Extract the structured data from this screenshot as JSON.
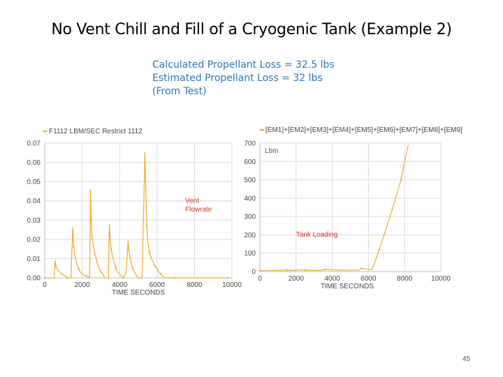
{
  "slide": {
    "title": "No Vent Chill and Fill of a Cryogenic Tank (Example 2)",
    "notes": [
      "Calculated Propellant Loss = 32.5 lbs",
      "Estimated Propellant Loss = 32 lbs",
      "(From Test)"
    ],
    "page_number": "45"
  },
  "chart_data": [
    {
      "type": "line",
      "title": "",
      "xlabel": "TIME  SECONDS",
      "ylabel": "",
      "legend": "top-left",
      "grid": true,
      "xlim": [
        0,
        10000
      ],
      "ylim": [
        0,
        0.07
      ],
      "xticks": [
        "0",
        "2000",
        "4000",
        "6000",
        "8000",
        "10000"
      ],
      "yticks": [
        "0.00",
        "0.01",
        "0.02",
        "0.03",
        "0.04",
        "0.05",
        "0.06",
        "0.07"
      ],
      "series": [
        {
          "name": "F1112 LBM/SEC Restrict 1112",
          "color": "#F0A830",
          "x": [
            0,
            500,
            560,
            600,
            700,
            800,
            900,
            1000,
            1100,
            1200,
            1400,
            1500,
            1550,
            1600,
            1700,
            1800,
            1900,
            2000,
            2200,
            2400,
            2450,
            2480,
            2520,
            2600,
            2700,
            2800,
            2900,
            3000,
            3100,
            3200,
            3400,
            3450,
            3500,
            3550,
            3600,
            3700,
            3800,
            3900,
            4000,
            4200,
            4350,
            4450,
            4500,
            4550,
            4600,
            4700,
            4800,
            4900,
            5000,
            5200,
            5350,
            5450,
            5500,
            5550,
            5600,
            5700,
            5800,
            5900,
            6000,
            6100,
            6200,
            6300,
            6400,
            7000,
            8000,
            9000,
            9800
          ],
          "values": [
            0,
            0,
            0.009,
            0.006,
            0.004,
            0.003,
            0.002,
            0.0015,
            0.001,
            0,
            0,
            0.026,
            0.016,
            0.012,
            0.008,
            0.005,
            0.003,
            0.002,
            0.001,
            0,
            0.046,
            0.03,
            0.022,
            0.016,
            0.012,
            0.008,
            0.005,
            0.003,
            0.002,
            0,
            0,
            0.028,
            0.02,
            0.015,
            0.012,
            0.008,
            0.005,
            0.003,
            0.002,
            0,
            0.003,
            0.019,
            0.014,
            0.011,
            0.008,
            0.005,
            0.003,
            0.001,
            0,
            0,
            0.065,
            0.027,
            0.02,
            0.016,
            0.013,
            0.01,
            0.008,
            0.006,
            0.005,
            0.003,
            0.002,
            0.001,
            0,
            0,
            0,
            0,
            0
          ]
        }
      ],
      "annotations": [
        {
          "text": "Vent",
          "x": 7500,
          "y": 0.039
        },
        {
          "text": "Flowrate",
          "x": 7500,
          "y": 0.0345
        }
      ]
    },
    {
      "type": "line",
      "title": "",
      "xlabel": "TIME  SECONDS",
      "ylabel": "",
      "unit_label": "Lbm",
      "legend": "top-left",
      "grid": true,
      "xlim": [
        0,
        10000
      ],
      "ylim": [
        0,
        700
      ],
      "xticks": [
        "0",
        "2000",
        "4000",
        "6000",
        "8000",
        "10000"
      ],
      "yticks": [
        "0",
        "100",
        "200",
        "300",
        "400",
        "500",
        "600",
        "700"
      ],
      "series": [
        {
          "name": "[EM1]+[EM2]+[EM3]+[EM4]+[EM5]+[EM6]+[EM7]+[EM8]+[EM9]",
          "color": "#F0A830",
          "x": [
            0,
            500,
            1000,
            1500,
            2000,
            2200,
            2500,
            3000,
            3500,
            3600,
            4000,
            4200,
            4500,
            5000,
            5500,
            5600,
            6000,
            6200,
            6600,
            7000,
            7500,
            7800,
            8000,
            8200
          ],
          "values": [
            5,
            6,
            6,
            8,
            6,
            10,
            8,
            6,
            8,
            12,
            10,
            8,
            8,
            7,
            8,
            18,
            12,
            10,
            120,
            240,
            400,
            500,
            600,
            690
          ]
        }
      ],
      "annotations": [
        {
          "text": "Tank Loading",
          "x": 2000,
          "y": 190
        }
      ]
    }
  ]
}
